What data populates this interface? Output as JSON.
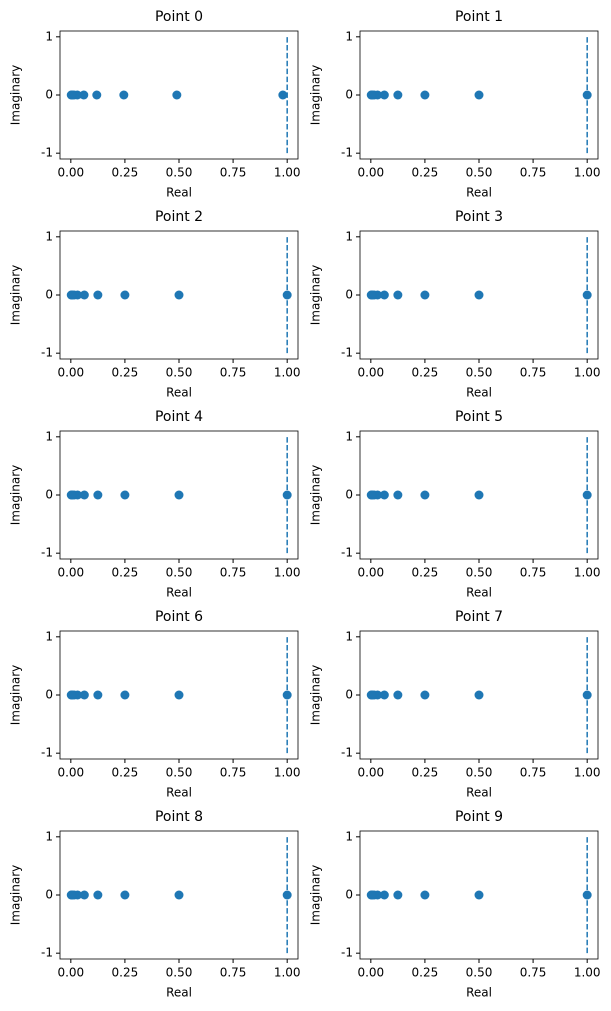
{
  "chart_data": [
    {
      "type": "scatter",
      "title": "Point 0",
      "xlabel": "Real",
      "ylabel": "Imaginary",
      "color": "#1f77b4",
      "x": [
        0.98,
        0.49,
        0.245,
        0.12,
        0.06,
        0.03,
        0.015,
        0.008,
        0.004,
        0.002
      ],
      "y": [
        0,
        0,
        0,
        0,
        0,
        0,
        0,
        0,
        0,
        0
      ],
      "vline": {
        "x": 1,
        "ymin": -1,
        "ymax": 1
      },
      "xlim": [
        -0.05,
        1.05
      ],
      "ylim": [
        -1.1,
        1.1
      ],
      "xticks": [
        {
          "value": 0,
          "label": "0.00"
        },
        {
          "value": 0.25,
          "label": "0.25"
        },
        {
          "value": 0.5,
          "label": "0.50"
        },
        {
          "value": 0.75,
          "label": "0.75"
        },
        {
          "value": 1,
          "label": "1.00"
        }
      ],
      "yticks": [
        -1,
        0,
        1
      ]
    },
    {
      "type": "scatter",
      "title": "Point 1",
      "xlabel": "Real",
      "ylabel": "Imaginary",
      "color": "#1f77b4",
      "x": [
        1,
        0.5,
        0.25,
        0.125,
        0.0625,
        0.03125,
        0.015625,
        0.0078125,
        0.0039,
        0.002
      ],
      "y": [
        0,
        0,
        0,
        0,
        0,
        0,
        0,
        0,
        0,
        0
      ],
      "vline": {
        "x": 1,
        "ymin": -1,
        "ymax": 1
      },
      "xlim": [
        -0.05,
        1.05
      ],
      "ylim": [
        -1.1,
        1.1
      ],
      "xticks": [
        {
          "value": 0,
          "label": "0.00"
        },
        {
          "value": 0.25,
          "label": "0.25"
        },
        {
          "value": 0.5,
          "label": "0.50"
        },
        {
          "value": 0.75,
          "label": "0.75"
        },
        {
          "value": 1,
          "label": "1.00"
        }
      ],
      "yticks": [
        -1,
        0,
        1
      ]
    },
    {
      "type": "scatter",
      "title": "Point 2",
      "xlabel": "Real",
      "ylabel": "Imaginary",
      "color": "#1f77b4",
      "x": [
        1,
        0.5,
        0.25,
        0.125,
        0.0625,
        0.03125,
        0.015625,
        0.0078125,
        0.0039,
        0.002
      ],
      "y": [
        0,
        0,
        0,
        0,
        0,
        0,
        0,
        0,
        0,
        0
      ],
      "vline": {
        "x": 1,
        "ymin": -1,
        "ymax": 1
      },
      "xlim": [
        -0.05,
        1.05
      ],
      "ylim": [
        -1.1,
        1.1
      ],
      "xticks": [
        {
          "value": 0,
          "label": "0.00"
        },
        {
          "value": 0.25,
          "label": "0.25"
        },
        {
          "value": 0.5,
          "label": "0.50"
        },
        {
          "value": 0.75,
          "label": "0.75"
        },
        {
          "value": 1,
          "label": "1.00"
        }
      ],
      "yticks": [
        -1,
        0,
        1
      ]
    },
    {
      "type": "scatter",
      "title": "Point 3",
      "xlabel": "Real",
      "ylabel": "Imaginary",
      "color": "#1f77b4",
      "x": [
        1,
        0.5,
        0.25,
        0.125,
        0.0625,
        0.03125,
        0.015625,
        0.0078125,
        0.0039,
        0.002
      ],
      "y": [
        0,
        0,
        0,
        0,
        0,
        0,
        0,
        0,
        0,
        0
      ],
      "vline": {
        "x": 1,
        "ymin": -1,
        "ymax": 1
      },
      "xlim": [
        -0.05,
        1.05
      ],
      "ylim": [
        -1.1,
        1.1
      ],
      "xticks": [
        {
          "value": 0,
          "label": "0.00"
        },
        {
          "value": 0.25,
          "label": "0.25"
        },
        {
          "value": 0.5,
          "label": "0.50"
        },
        {
          "value": 0.75,
          "label": "0.75"
        },
        {
          "value": 1,
          "label": "1.00"
        }
      ],
      "yticks": [
        -1,
        0,
        1
      ]
    },
    {
      "type": "scatter",
      "title": "Point 4",
      "xlabel": "Real",
      "ylabel": "Imaginary",
      "color": "#1f77b4",
      "x": [
        1,
        0.5,
        0.25,
        0.125,
        0.0625,
        0.03125,
        0.015625,
        0.0078125,
        0.0039,
        0.002
      ],
      "y": [
        0,
        0,
        0,
        0,
        0,
        0,
        0,
        0,
        0,
        0
      ],
      "vline": {
        "x": 1,
        "ymin": -1,
        "ymax": 1
      },
      "xlim": [
        -0.05,
        1.05
      ],
      "ylim": [
        -1.1,
        1.1
      ],
      "xticks": [
        {
          "value": 0,
          "label": "0.00"
        },
        {
          "value": 0.25,
          "label": "0.25"
        },
        {
          "value": 0.5,
          "label": "0.50"
        },
        {
          "value": 0.75,
          "label": "0.75"
        },
        {
          "value": 1,
          "label": "1.00"
        }
      ],
      "yticks": [
        -1,
        0,
        1
      ]
    },
    {
      "type": "scatter",
      "title": "Point 5",
      "xlabel": "Real",
      "ylabel": "Imaginary",
      "color": "#1f77b4",
      "x": [
        1,
        0.5,
        0.25,
        0.125,
        0.0625,
        0.03125,
        0.015625,
        0.0078125,
        0.0039,
        0.002
      ],
      "y": [
        0,
        0,
        0,
        0,
        0,
        0,
        0,
        0,
        0,
        0
      ],
      "vline": {
        "x": 1,
        "ymin": -1,
        "ymax": 1
      },
      "xlim": [
        -0.05,
        1.05
      ],
      "ylim": [
        -1.1,
        1.1
      ],
      "xticks": [
        {
          "value": 0,
          "label": "0.00"
        },
        {
          "value": 0.25,
          "label": "0.25"
        },
        {
          "value": 0.5,
          "label": "0.50"
        },
        {
          "value": 0.75,
          "label": "0.75"
        },
        {
          "value": 1,
          "label": "1.00"
        }
      ],
      "yticks": [
        -1,
        0,
        1
      ]
    },
    {
      "type": "scatter",
      "title": "Point 6",
      "xlabel": "Real",
      "ylabel": "Imaginary",
      "color": "#1f77b4",
      "x": [
        1,
        0.5,
        0.25,
        0.125,
        0.0625,
        0.03125,
        0.015625,
        0.0078125,
        0.0039,
        0.002
      ],
      "y": [
        0,
        0,
        0,
        0,
        0,
        0,
        0,
        0,
        0,
        0
      ],
      "vline": {
        "x": 1,
        "ymin": -1,
        "ymax": 1
      },
      "xlim": [
        -0.05,
        1.05
      ],
      "ylim": [
        -1.1,
        1.1
      ],
      "xticks": [
        {
          "value": 0,
          "label": "0.00"
        },
        {
          "value": 0.25,
          "label": "0.25"
        },
        {
          "value": 0.5,
          "label": "0.50"
        },
        {
          "value": 0.75,
          "label": "0.75"
        },
        {
          "value": 1,
          "label": "1.00"
        }
      ],
      "yticks": [
        -1,
        0,
        1
      ]
    },
    {
      "type": "scatter",
      "title": "Point 7",
      "xlabel": "Real",
      "ylabel": "Imaginary",
      "color": "#1f77b4",
      "x": [
        1,
        0.5,
        0.25,
        0.125,
        0.0625,
        0.03125,
        0.015625,
        0.0078125,
        0.0039,
        0.002
      ],
      "y": [
        0,
        0,
        0,
        0,
        0,
        0,
        0,
        0,
        0,
        0
      ],
      "vline": {
        "x": 1,
        "ymin": -1,
        "ymax": 1
      },
      "xlim": [
        -0.05,
        1.05
      ],
      "ylim": [
        -1.1,
        1.1
      ],
      "xticks": [
        {
          "value": 0,
          "label": "0.00"
        },
        {
          "value": 0.25,
          "label": "0.25"
        },
        {
          "value": 0.5,
          "label": "0.50"
        },
        {
          "value": 0.75,
          "label": "0.75"
        },
        {
          "value": 1,
          "label": "1.00"
        }
      ],
      "yticks": [
        -1,
        0,
        1
      ]
    },
    {
      "type": "scatter",
      "title": "Point 8",
      "xlabel": "Real",
      "ylabel": "Imaginary",
      "color": "#1f77b4",
      "x": [
        1,
        0.5,
        0.25,
        0.125,
        0.0625,
        0.03125,
        0.015625,
        0.0078125,
        0.0039,
        0.002
      ],
      "y": [
        0,
        0,
        0,
        0,
        0,
        0,
        0,
        0,
        0,
        0
      ],
      "vline": {
        "x": 1,
        "ymin": -1,
        "ymax": 1
      },
      "xlim": [
        -0.05,
        1.05
      ],
      "ylim": [
        -1.1,
        1.1
      ],
      "xticks": [
        {
          "value": 0,
          "label": "0.00"
        },
        {
          "value": 0.25,
          "label": "0.25"
        },
        {
          "value": 0.5,
          "label": "0.50"
        },
        {
          "value": 0.75,
          "label": "0.75"
        },
        {
          "value": 1,
          "label": "1.00"
        }
      ],
      "yticks": [
        -1,
        0,
        1
      ]
    },
    {
      "type": "scatter",
      "title": "Point 9",
      "xlabel": "Real",
      "ylabel": "Imaginary",
      "color": "#1f77b4",
      "x": [
        1,
        0.5,
        0.25,
        0.125,
        0.0625,
        0.03125,
        0.015625,
        0.0078125,
        0.0039,
        0.002
      ],
      "y": [
        0,
        0,
        0,
        0,
        0,
        0,
        0,
        0,
        0,
        0
      ],
      "vline": {
        "x": 1,
        "ymin": -1,
        "ymax": 1
      },
      "xlim": [
        -0.05,
        1.05
      ],
      "ylim": [
        -1.1,
        1.1
      ],
      "xticks": [
        {
          "value": 0,
          "label": "0.00"
        },
        {
          "value": 0.25,
          "label": "0.25"
        },
        {
          "value": 0.5,
          "label": "0.50"
        },
        {
          "value": 0.75,
          "label": "0.75"
        },
        {
          "value": 1,
          "label": "1.00"
        }
      ],
      "yticks": [
        -1,
        0,
        1
      ]
    }
  ]
}
